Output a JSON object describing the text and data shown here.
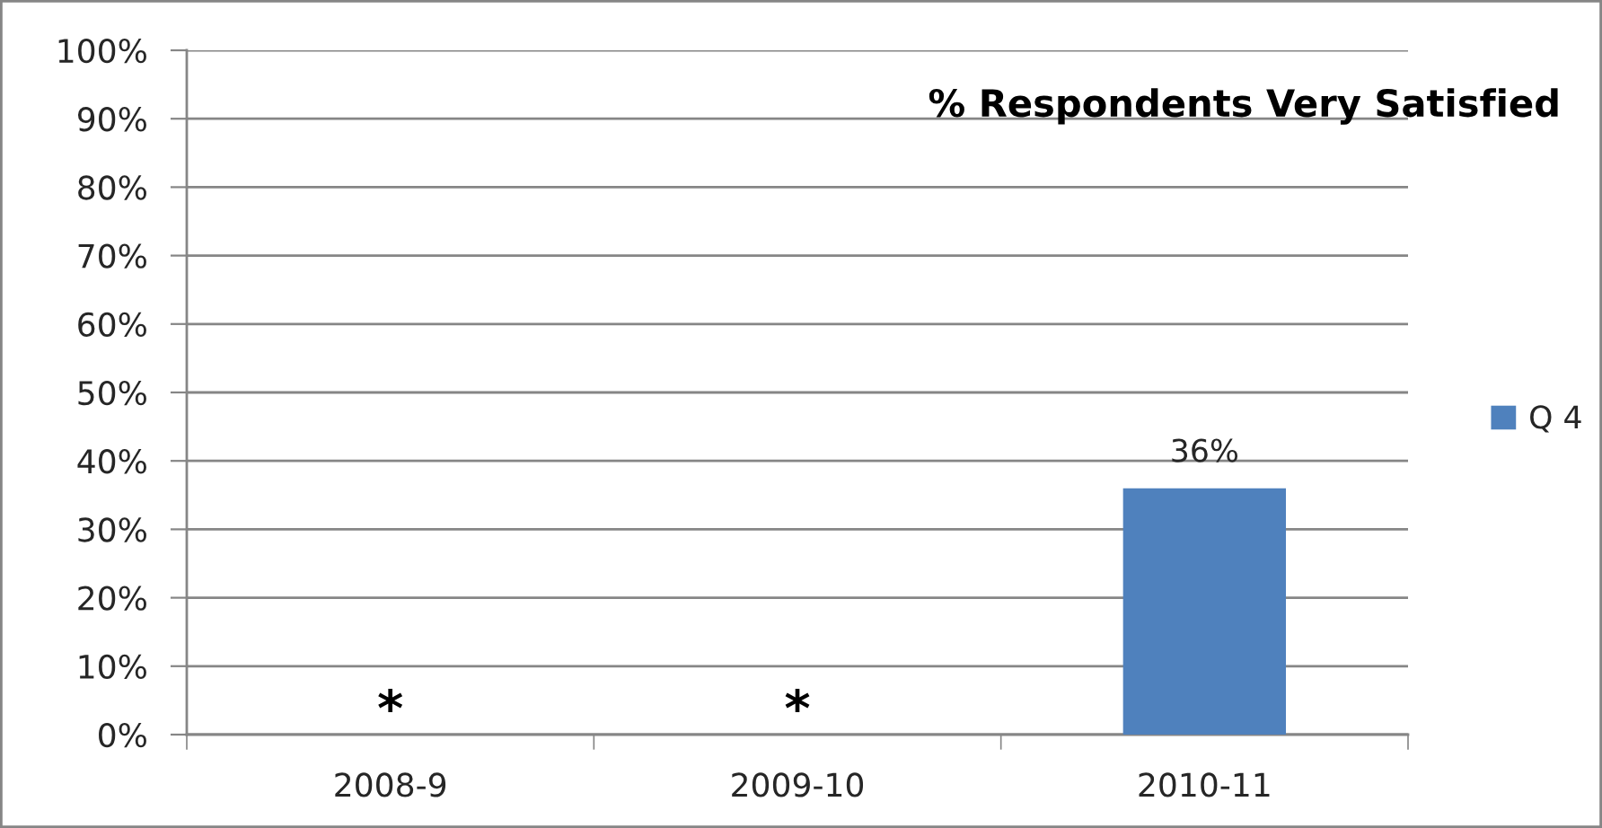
{
  "chart_data": {
    "type": "bar",
    "title": "% Respondents Very Satisfied",
    "categories": [
      "2008-9",
      "2009-10",
      "2010-11"
    ],
    "series": [
      {
        "name": "Q 4",
        "color": "#4f81bd",
        "values": [
          null,
          null,
          36
        ],
        "value_labels": [
          null,
          null,
          "36%"
        ]
      }
    ],
    "ylim": [
      0,
      100
    ],
    "yticks": [
      {
        "value": 0,
        "label": "0%"
      },
      {
        "value": 10,
        "label": "10%"
      },
      {
        "value": 20,
        "label": "20%"
      },
      {
        "value": 30,
        "label": "30%"
      },
      {
        "value": 40,
        "label": "40%"
      },
      {
        "value": 50,
        "label": "50%"
      },
      {
        "value": 60,
        "label": "60%"
      },
      {
        "value": 70,
        "label": "70%"
      },
      {
        "value": 80,
        "label": "80%"
      },
      {
        "value": 90,
        "label": "90%"
      },
      {
        "value": 100,
        "label": "100%"
      }
    ],
    "annotations": [
      "*",
      "*"
    ],
    "grid": "y",
    "legend": "right"
  }
}
